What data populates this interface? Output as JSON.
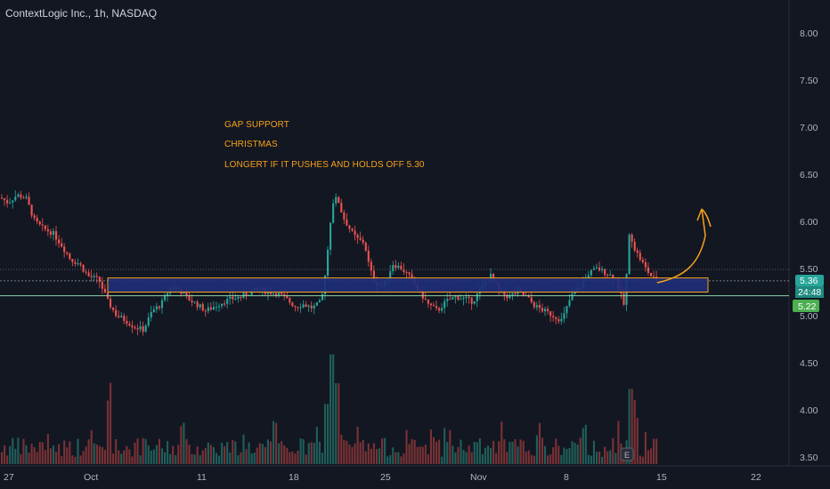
{
  "header": {
    "title": "ContextLogic Inc., 1h, NASDAQ"
  },
  "annotations": {
    "line1": "GAP SUPPORT",
    "line2": "CHRISTMAS",
    "line3": "LONGERT IF IT PUSHES AND HOLDS OFF 5.30"
  },
  "colors": {
    "background": "#131722",
    "up": "#26a69a",
    "down": "#ef5350",
    "zone_fill": "#1f2e7a",
    "zone_border": "#f7a21b",
    "arrow": "#f7a21b",
    "support_line": "#8bd3a6",
    "price_box": "#26a69a",
    "support_box": "#5cb85c"
  },
  "price_labels": {
    "current": "5.36",
    "countdown": "24:48",
    "support": "5.22"
  },
  "earnings_marker": "E",
  "chart_data": {
    "type": "candlestick",
    "y_axis_ticks": [
      "8.00",
      "7.50",
      "7.00",
      "6.50",
      "6.00",
      "5.50",
      "5.00",
      "4.50",
      "4.00",
      "3.50"
    ],
    "x_axis_ticks": [
      "27",
      "Oct",
      "11",
      "18",
      "25",
      "Nov",
      "8",
      "15",
      "22"
    ],
    "ylim": [
      3.45,
      8.2
    ],
    "zone": {
      "low": 5.25,
      "high": 5.4
    },
    "support_level": 5.22,
    "current_price": 5.36,
    "price_path": [
      [
        0,
        6.25
      ],
      [
        8,
        6.2
      ],
      [
        18,
        6.28
      ],
      [
        28,
        6.25
      ],
      [
        38,
        6.0
      ],
      [
        48,
        5.92
      ],
      [
        58,
        5.88
      ],
      [
        68,
        5.75
      ],
      [
        78,
        5.6
      ],
      [
        88,
        5.55
      ],
      [
        98,
        5.42
      ],
      [
        110,
        5.38
      ],
      [
        120,
        5.15
      ],
      [
        130,
        5.0
      ],
      [
        140,
        4.95
      ],
      [
        150,
        4.88
      ],
      [
        160,
        4.85
      ],
      [
        170,
        5.05
      ],
      [
        180,
        5.12
      ],
      [
        190,
        5.3
      ],
      [
        200,
        5.28
      ],
      [
        210,
        5.18
      ],
      [
        220,
        5.12
      ],
      [
        230,
        5.05
      ],
      [
        240,
        5.1
      ],
      [
        250,
        5.15
      ],
      [
        260,
        5.18
      ],
      [
        270,
        5.2
      ],
      [
        280,
        5.25
      ],
      [
        290,
        5.28
      ],
      [
        300,
        5.25
      ],
      [
        310,
        5.24
      ],
      [
        320,
        5.18
      ],
      [
        330,
        5.1
      ],
      [
        340,
        5.12
      ],
      [
        350,
        5.08
      ],
      [
        360,
        5.15
      ],
      [
        366,
        5.6
      ],
      [
        372,
        6.2
      ],
      [
        378,
        6.25
      ],
      [
        384,
        6.05
      ],
      [
        390,
        5.95
      ],
      [
        396,
        5.85
      ],
      [
        402,
        5.8
      ],
      [
        408,
        5.78
      ],
      [
        414,
        5.5
      ],
      [
        420,
        5.35
      ],
      [
        430,
        5.32
      ],
      [
        440,
        5.55
      ],
      [
        450,
        5.5
      ],
      [
        460,
        5.4
      ],
      [
        470,
        5.25
      ],
      [
        480,
        5.12
      ],
      [
        490,
        5.05
      ],
      [
        500,
        5.15
      ],
      [
        510,
        5.2
      ],
      [
        520,
        5.18
      ],
      [
        530,
        5.15
      ],
      [
        540,
        5.3
      ],
      [
        550,
        5.42
      ],
      [
        560,
        5.25
      ],
      [
        570,
        5.2
      ],
      [
        580,
        5.25
      ],
      [
        590,
        5.2
      ],
      [
        600,
        5.1
      ],
      [
        610,
        5.05
      ],
      [
        620,
        5.0
      ],
      [
        630,
        4.95
      ],
      [
        640,
        5.2
      ],
      [
        650,
        5.3
      ],
      [
        660,
        5.45
      ],
      [
        670,
        5.5
      ],
      [
        680,
        5.45
      ],
      [
        690,
        5.4
      ],
      [
        700,
        5.1
      ],
      [
        706,
        5.9
      ],
      [
        712,
        5.7
      ],
      [
        718,
        5.6
      ],
      [
        724,
        5.5
      ],
      [
        730,
        5.42
      ],
      [
        736,
        5.36
      ]
    ],
    "volume_spikes": [
      [
        122,
        0.55
      ],
      [
        366,
        0.52
      ],
      [
        372,
        0.95
      ],
      [
        378,
        0.7
      ],
      [
        706,
        0.65
      ],
      [
        712,
        0.4
      ]
    ]
  }
}
